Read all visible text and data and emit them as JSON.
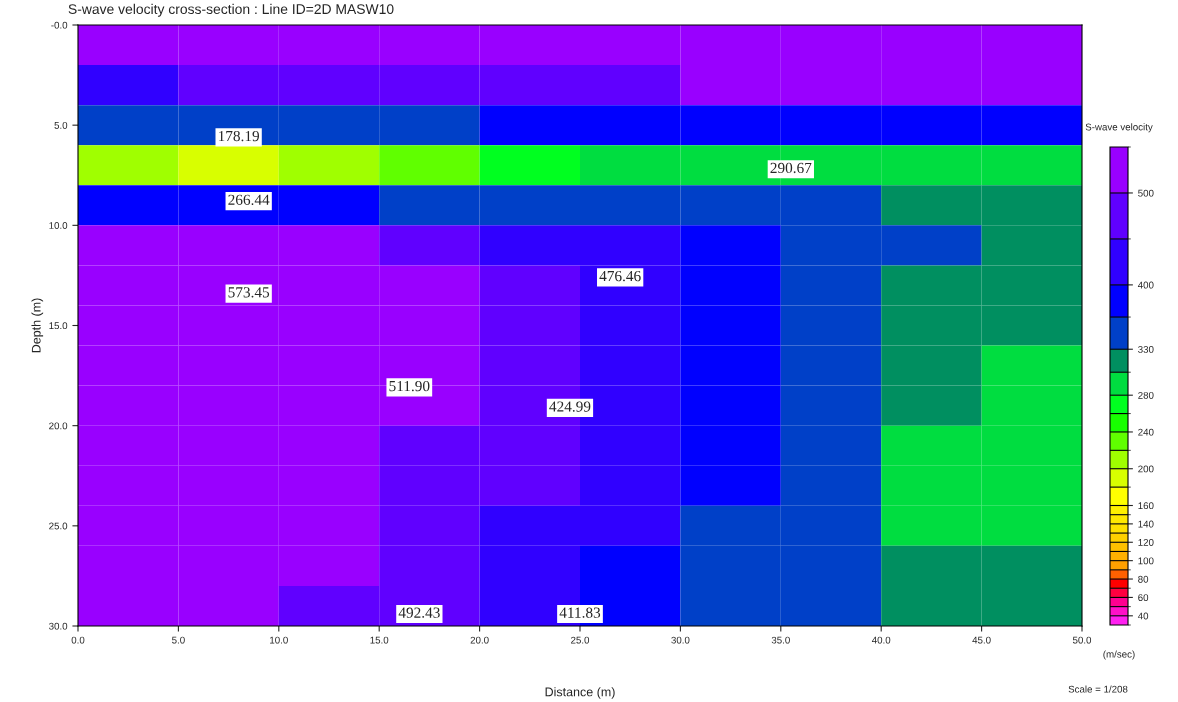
{
  "chart_data": {
    "type": "heatmap",
    "title": "S-wave velocity cross-section : Line ID=2D MASW10",
    "xlabel": "Distance (m)",
    "ylabel": "Depth (m)",
    "clabel": "S-wave velocity",
    "xlim": [
      0,
      50
    ],
    "xticks": [
      {
        "value": 0,
        "label": "0.0"
      },
      {
        "value": 5,
        "label": "5.0"
      },
      {
        "value": 10,
        "label": "10.0"
      },
      {
        "value": 15,
        "label": "15.0"
      },
      {
        "value": 20,
        "label": "20.0"
      },
      {
        "value": 25,
        "label": "25.0"
      },
      {
        "value": 30,
        "label": "30.0"
      },
      {
        "value": 35,
        "label": "35.0"
      },
      {
        "value": 40,
        "label": "40.0"
      },
      {
        "value": 45,
        "label": "45.0"
      },
      {
        "value": 50,
        "label": "50.0"
      }
    ],
    "ylim": [
      30,
      0
    ],
    "yticks": [
      {
        "value": 0,
        "label": "-0.0"
      },
      {
        "value": 5,
        "label": "5.0"
      },
      {
        "value": 10,
        "label": "10.0"
      },
      {
        "value": 15,
        "label": "15.0"
      },
      {
        "value": 20,
        "label": "20.0"
      },
      {
        "value": 25,
        "label": "25.0"
      },
      {
        "value": 30,
        "label": "30.0"
      }
    ],
    "cells": [
      [
        520,
        520,
        520,
        520,
        520,
        520,
        520,
        520,
        520,
        520
      ],
      [
        440,
        450,
        460,
        470,
        480,
        490,
        500,
        500,
        510,
        510
      ],
      [
        350,
        350,
        360,
        360,
        370,
        370,
        380,
        380,
        380,
        380
      ],
      [
        200,
        190,
        210,
        230,
        260,
        280,
        290,
        290,
        290,
        290
      ],
      [
        380,
        380,
        370,
        350,
        340,
        330,
        330,
        330,
        320,
        320
      ],
      [
        530,
        520,
        500,
        460,
        440,
        410,
        380,
        350,
        330,
        320
      ],
      [
        560,
        560,
        540,
        510,
        470,
        430,
        390,
        350,
        320,
        310
      ],
      [
        570,
        560,
        550,
        520,
        470,
        430,
        390,
        350,
        320,
        310
      ],
      [
        570,
        560,
        540,
        510,
        470,
        430,
        390,
        350,
        310,
        290
      ],
      [
        570,
        560,
        530,
        500,
        460,
        420,
        380,
        340,
        310,
        290
      ],
      [
        570,
        560,
        530,
        490,
        460,
        420,
        380,
        340,
        290,
        290
      ],
      [
        570,
        560,
        520,
        490,
        450,
        410,
        370,
        330,
        290,
        290
      ],
      [
        570,
        560,
        510,
        480,
        440,
        400,
        360,
        330,
        300,
        290
      ],
      [
        570,
        540,
        500,
        460,
        420,
        390,
        350,
        330,
        320,
        310
      ],
      [
        570,
        530,
        490,
        450,
        410,
        380,
        350,
        330,
        320,
        320
      ]
    ],
    "clim": [
      30,
      550
    ],
    "cticks": [
      40,
      60,
      80,
      100,
      120,
      140,
      160,
      200,
      240,
      280,
      330,
      400,
      500
    ],
    "colors": [
      "#ff20f0",
      "#ff10c8",
      "#ff0090",
      "#ff0040",
      "#ff0000",
      "#ff6000",
      "#ffa000",
      "#ffb000",
      "#ffc000",
      "#ffd000",
      "#ffe000",
      "#ffe800",
      "#fff000",
      "#ffff00",
      "#d8ff00",
      "#a0ff00",
      "#60ff00",
      "#18ff00",
      "#00ff20",
      "#00dd40",
      "#008f60",
      "#0040c8",
      "#0000ff",
      "#3000ff",
      "#6000ff",
      "#9900ff"
    ],
    "annotations": [
      "178.19",
      "290.67",
      "266.44",
      "573.45",
      "476.46",
      "511.90",
      "424.99",
      "492.43",
      "411.83",
      "(m/sec)",
      "Scale = 1/208"
    ]
  }
}
